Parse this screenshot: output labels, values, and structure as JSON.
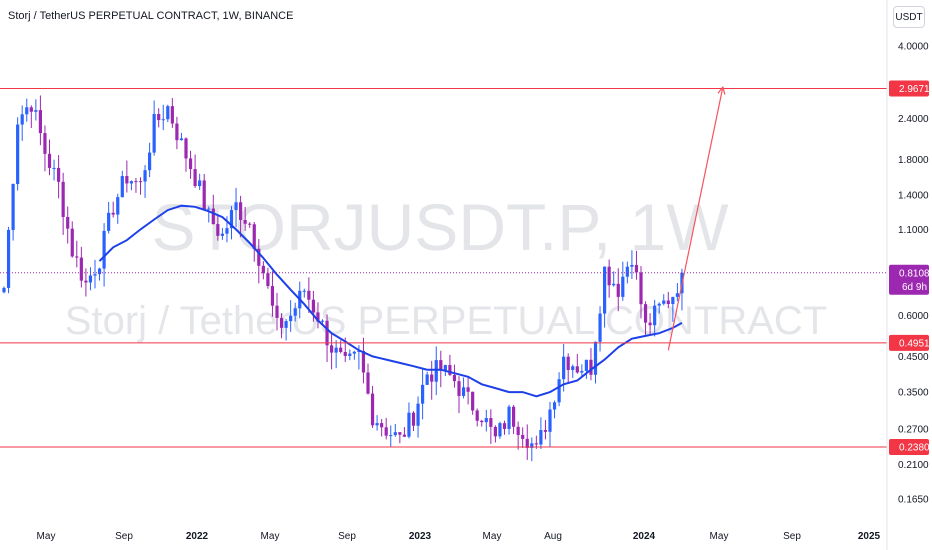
{
  "header": {
    "title": "Storj / TetherUS PERPETUAL CONTRACT, 1W, BINANCE",
    "currency": "USDT"
  },
  "watermark": {
    "symbol": "STORJUSDT.P, 1W",
    "description": "Storj / TetherUS PERPETUAL CONTRACT"
  },
  "colors": {
    "up": "#2962ff",
    "down": "#9c27b0",
    "level_line": "#f23645",
    "moving_average": "#1e40e8",
    "arrow": "#f7525f",
    "current_price": "#9c27b0"
  },
  "chart_data": {
    "type": "candlestick",
    "y_scale": "log",
    "y_range": [
      0.15,
      5.0
    ],
    "y_ticks": [
      "4.0000",
      "2.4000",
      "1.8000",
      "1.4000",
      "1.1000",
      "0.6000",
      "0.4500",
      "0.3500",
      "0.2700",
      "0.2100",
      "0.1650"
    ],
    "x_ticks": [
      {
        "label": "May",
        "bold": false
      },
      {
        "label": "Sep",
        "bold": false
      },
      {
        "label": "2022",
        "bold": true
      },
      {
        "label": "May",
        "bold": false
      },
      {
        "label": "Sep",
        "bold": false
      },
      {
        "label": "2023",
        "bold": true
      },
      {
        "label": "May",
        "bold": false
      },
      {
        "label": "Aug",
        "bold": false
      },
      {
        "label": "2024",
        "bold": true
      },
      {
        "label": "May",
        "bold": false
      },
      {
        "label": "Sep",
        "bold": false
      },
      {
        "label": "2025",
        "bold": true
      }
    ],
    "horizontal_levels": [
      {
        "value": 2.9671,
        "label": "2.9671"
      },
      {
        "value": 0.4951,
        "label": "0.4951"
      },
      {
        "value": 0.238,
        "label": "0.2380"
      }
    ],
    "current_price": {
      "value": 0.8108,
      "label": "0.8108",
      "countdown": "6d 9h"
    },
    "price_path": [
      [
        0,
        0.73
      ],
      [
        3,
        2.4
      ],
      [
        6,
        2.7
      ],
      [
        9,
        1.9
      ],
      [
        12,
        1.5
      ],
      [
        15,
        0.95
      ],
      [
        18,
        0.75
      ],
      [
        21,
        0.9
      ],
      [
        24,
        1.3
      ],
      [
        27,
        1.6
      ],
      [
        30,
        1.5
      ],
      [
        33,
        2.3
      ],
      [
        36,
        2.6
      ],
      [
        39,
        2.0
      ],
      [
        42,
        1.6
      ],
      [
        45,
        1.2
      ],
      [
        48,
        1.05
      ],
      [
        51,
        1.3
      ],
      [
        54,
        1.15
      ],
      [
        57,
        0.82
      ],
      [
        60,
        0.55
      ],
      [
        63,
        0.6
      ],
      [
        66,
        0.72
      ],
      [
        69,
        0.6
      ],
      [
        72,
        0.48
      ],
      [
        75,
        0.42
      ],
      [
        78,
        0.45
      ],
      [
        81,
        0.3
      ],
      [
        84,
        0.27
      ],
      [
        87,
        0.25
      ],
      [
        90,
        0.3
      ],
      [
        93,
        0.4
      ],
      [
        96,
        0.41
      ],
      [
        99,
        0.38
      ],
      [
        102,
        0.33
      ],
      [
        105,
        0.3
      ],
      [
        108,
        0.25
      ],
      [
        111,
        0.3
      ],
      [
        114,
        0.27
      ],
      [
        117,
        0.23
      ],
      [
        120,
        0.31
      ],
      [
        123,
        0.45
      ],
      [
        126,
        0.42
      ],
      [
        129,
        0.42
      ],
      [
        132,
        0.83
      ],
      [
        135,
        0.73
      ],
      [
        138,
        0.93
      ],
      [
        141,
        0.55
      ],
      [
        144,
        0.63
      ],
      [
        147,
        0.7
      ],
      [
        149,
        0.81
      ]
    ],
    "moving_average_path": [
      [
        21,
        0.88
      ],
      [
        24,
        0.97
      ],
      [
        27,
        1.02
      ],
      [
        30,
        1.1
      ],
      [
        33,
        1.18
      ],
      [
        36,
        1.26
      ],
      [
        39,
        1.3
      ],
      [
        42,
        1.29
      ],
      [
        45,
        1.25
      ],
      [
        48,
        1.2
      ],
      [
        51,
        1.1
      ],
      [
        54,
        1.0
      ],
      [
        57,
        0.9
      ],
      [
        60,
        0.8
      ],
      [
        63,
        0.72
      ],
      [
        66,
        0.65
      ],
      [
        69,
        0.58
      ],
      [
        72,
        0.53
      ],
      [
        75,
        0.5
      ],
      [
        78,
        0.47
      ],
      [
        81,
        0.45
      ],
      [
        84,
        0.44
      ],
      [
        87,
        0.43
      ],
      [
        90,
        0.42
      ],
      [
        93,
        0.41
      ],
      [
        96,
        0.41
      ],
      [
        99,
        0.4
      ],
      [
        102,
        0.39
      ],
      [
        105,
        0.37
      ],
      [
        108,
        0.36
      ],
      [
        111,
        0.35
      ],
      [
        114,
        0.35
      ],
      [
        117,
        0.34
      ],
      [
        120,
        0.35
      ],
      [
        123,
        0.37
      ],
      [
        126,
        0.38
      ],
      [
        129,
        0.41
      ],
      [
        132,
        0.44
      ],
      [
        135,
        0.48
      ],
      [
        138,
        0.51
      ],
      [
        141,
        0.52
      ],
      [
        144,
        0.53
      ],
      [
        147,
        0.55
      ],
      [
        149,
        0.57
      ]
    ],
    "projection": {
      "from": [
        146,
        0.47
      ],
      "to": [
        158,
        3.0
      ]
    }
  }
}
